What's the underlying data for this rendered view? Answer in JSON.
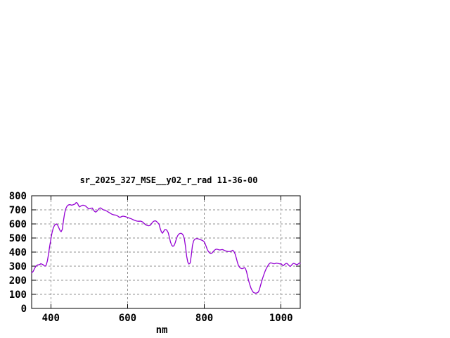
{
  "window": {
    "background": "#ffffff"
  },
  "chart_data": {
    "type": "line",
    "title": "sr_2025_327_MSE__y02_r_rad 11-36-00",
    "xlabel": "nm",
    "ylabel": "",
    "xlim": [
      350,
      1050
    ],
    "ylim": [
      0,
      800
    ],
    "xticks": [
      400,
      600,
      800,
      1000
    ],
    "yticks": [
      0,
      100,
      200,
      300,
      400,
      500,
      600,
      700,
      800
    ],
    "grid": true,
    "legend_position": "none",
    "colors": {
      "line": "#9400D3",
      "grid": "#909090",
      "axis": "#000000",
      "background": "#ffffff"
    },
    "series": [
      {
        "points": [
          [
            350,
            252
          ],
          [
            354,
            263
          ],
          [
            357,
            280
          ],
          [
            360,
            296
          ],
          [
            363,
            305
          ],
          [
            366,
            309
          ],
          [
            369,
            310
          ],
          [
            372,
            313
          ],
          [
            374,
            318
          ],
          [
            377,
            314
          ],
          [
            380,
            310
          ],
          [
            383,
            303
          ],
          [
            385,
            300
          ],
          [
            388,
            308
          ],
          [
            391,
            338
          ],
          [
            394,
            385
          ],
          [
            397,
            440
          ],
          [
            400,
            490
          ],
          [
            403,
            535
          ],
          [
            406,
            568
          ],
          [
            409,
            587
          ],
          [
            412,
            597
          ],
          [
            415,
            600
          ],
          [
            418,
            590
          ],
          [
            421,
            572
          ],
          [
            424,
            553
          ],
          [
            427,
            545
          ],
          [
            430,
            562
          ],
          [
            433,
            624
          ],
          [
            436,
            676
          ],
          [
            439,
            708
          ],
          [
            442,
            725
          ],
          [
            445,
            733
          ],
          [
            448,
            737
          ],
          [
            451,
            736
          ],
          [
            454,
            733
          ],
          [
            457,
            735
          ],
          [
            460,
            738
          ],
          [
            463,
            741
          ],
          [
            466,
            752
          ],
          [
            468,
            750
          ],
          [
            470,
            744
          ],
          [
            472,
            731
          ],
          [
            475,
            721
          ],
          [
            478,
            727
          ],
          [
            481,
            731
          ],
          [
            484,
            733
          ],
          [
            487,
            731
          ],
          [
            490,
            728
          ],
          [
            493,
            721
          ],
          [
            496,
            713
          ],
          [
            499,
            707
          ],
          [
            502,
            708
          ],
          [
            505,
            711
          ],
          [
            508,
            713
          ],
          [
            511,
            700
          ],
          [
            514,
            689
          ],
          [
            517,
            684
          ],
          [
            520,
            690
          ],
          [
            523,
            700
          ],
          [
            526,
            710
          ],
          [
            529,
            714
          ],
          [
            532,
            709
          ],
          [
            535,
            703
          ],
          [
            538,
            699
          ],
          [
            542,
            696
          ],
          [
            546,
            691
          ],
          [
            550,
            684
          ],
          [
            553,
            679
          ],
          [
            556,
            674
          ],
          [
            559,
            669
          ],
          [
            562,
            666
          ],
          [
            565,
            664
          ],
          [
            568,
            663
          ],
          [
            571,
            661
          ],
          [
            574,
            657
          ],
          [
            577,
            650
          ],
          [
            580,
            647
          ],
          [
            583,
            650
          ],
          [
            586,
            654
          ],
          [
            589,
            655
          ],
          [
            592,
            653
          ],
          [
            595,
            651
          ],
          [
            598,
            648
          ],
          [
            601,
            645
          ],
          [
            604,
            642
          ],
          [
            607,
            639
          ],
          [
            610,
            636
          ],
          [
            613,
            632
          ],
          [
            616,
            628
          ],
          [
            619,
            625
          ],
          [
            622,
            622
          ],
          [
            625,
            620
          ],
          [
            628,
            619
          ],
          [
            631,
            619
          ],
          [
            634,
            620
          ],
          [
            637,
            617
          ],
          [
            640,
            612
          ],
          [
            643,
            604
          ],
          [
            646,
            597
          ],
          [
            649,
            591
          ],
          [
            652,
            589
          ],
          [
            655,
            587
          ],
          [
            658,
            589
          ],
          [
            661,
            596
          ],
          [
            664,
            608
          ],
          [
            667,
            617
          ],
          [
            670,
            621
          ],
          [
            673,
            622
          ],
          [
            676,
            616
          ],
          [
            679,
            608
          ],
          [
            682,
            598
          ],
          [
            685,
            568
          ],
          [
            688,
            544
          ],
          [
            691,
            534
          ],
          [
            694,
            547
          ],
          [
            697,
            560
          ],
          [
            700,
            560
          ],
          [
            703,
            553
          ],
          [
            706,
            537
          ],
          [
            709,
            505
          ],
          [
            712,
            471
          ],
          [
            715,
            449
          ],
          [
            718,
            441
          ],
          [
            721,
            446
          ],
          [
            724,
            465
          ],
          [
            727,
            492
          ],
          [
            730,
            514
          ],
          [
            733,
            526
          ],
          [
            736,
            532
          ],
          [
            739,
            534
          ],
          [
            742,
            530
          ],
          [
            745,
            519
          ],
          [
            748,
            494
          ],
          [
            751,
            440
          ],
          [
            754,
            370
          ],
          [
            757,
            329
          ],
          [
            760,
            315
          ],
          [
            763,
            322
          ],
          [
            766,
            374
          ],
          [
            769,
            447
          ],
          [
            772,
            479
          ],
          [
            775,
            491
          ],
          [
            778,
            495
          ],
          [
            781,
            496
          ],
          [
            784,
            494
          ],
          [
            787,
            491
          ],
          [
            790,
            488
          ],
          [
            793,
            485
          ],
          [
            796,
            481
          ],
          [
            799,
            476
          ],
          [
            802,
            461
          ],
          [
            805,
            439
          ],
          [
            808,
            417
          ],
          [
            811,
            403
          ],
          [
            814,
            394
          ],
          [
            817,
            390
          ],
          [
            820,
            393
          ],
          [
            823,
            403
          ],
          [
            826,
            412
          ],
          [
            829,
            418
          ],
          [
            832,
            421
          ],
          [
            835,
            419
          ],
          [
            838,
            416
          ],
          [
            841,
            415
          ],
          [
            844,
            417
          ],
          [
            847,
            418
          ],
          [
            850,
            415
          ],
          [
            853,
            411
          ],
          [
            856,
            408
          ],
          [
            859,
            406
          ],
          [
            862,
            404
          ],
          [
            865,
            404
          ],
          [
            868,
            405
          ],
          [
            871,
            408
          ],
          [
            874,
            413
          ],
          [
            877,
            405
          ],
          [
            880,
            389
          ],
          [
            883,
            361
          ],
          [
            886,
            330
          ],
          [
            889,
            305
          ],
          [
            892,
            292
          ],
          [
            895,
            285
          ],
          [
            898,
            282
          ],
          [
            901,
            284
          ],
          [
            904,
            290
          ],
          [
            907,
            284
          ],
          [
            910,
            262
          ],
          [
            913,
            227
          ],
          [
            916,
            192
          ],
          [
            919,
            165
          ],
          [
            922,
            142
          ],
          [
            925,
            125
          ],
          [
            928,
            114
          ],
          [
            931,
            110
          ],
          [
            934,
            108
          ],
          [
            937,
            110
          ],
          [
            940,
            114
          ],
          [
            943,
            129
          ],
          [
            946,
            157
          ],
          [
            949,
            187
          ],
          [
            952,
            214
          ],
          [
            955,
            239
          ],
          [
            958,
            261
          ],
          [
            961,
            280
          ],
          [
            964,
            296
          ],
          [
            967,
            309
          ],
          [
            970,
            319
          ],
          [
            973,
            324
          ],
          [
            976,
            322
          ],
          [
            979,
            319
          ],
          [
            982,
            317
          ],
          [
            985,
            319
          ],
          [
            988,
            322
          ],
          [
            991,
            320
          ],
          [
            994,
            318
          ],
          [
            997,
            316
          ],
          [
            1000,
            318
          ],
          [
            1003,
            309
          ],
          [
            1006,
            304
          ],
          [
            1009,
            311
          ],
          [
            1012,
            318
          ],
          [
            1015,
            320
          ],
          [
            1018,
            313
          ],
          [
            1021,
            304
          ],
          [
            1024,
            298
          ],
          [
            1027,
            306
          ],
          [
            1030,
            316
          ],
          [
            1033,
            320
          ],
          [
            1036,
            317
          ],
          [
            1039,
            313
          ],
          [
            1042,
            310
          ],
          [
            1045,
            317
          ],
          [
            1048,
            323
          ],
          [
            1050,
            320
          ]
        ]
      }
    ]
  }
}
